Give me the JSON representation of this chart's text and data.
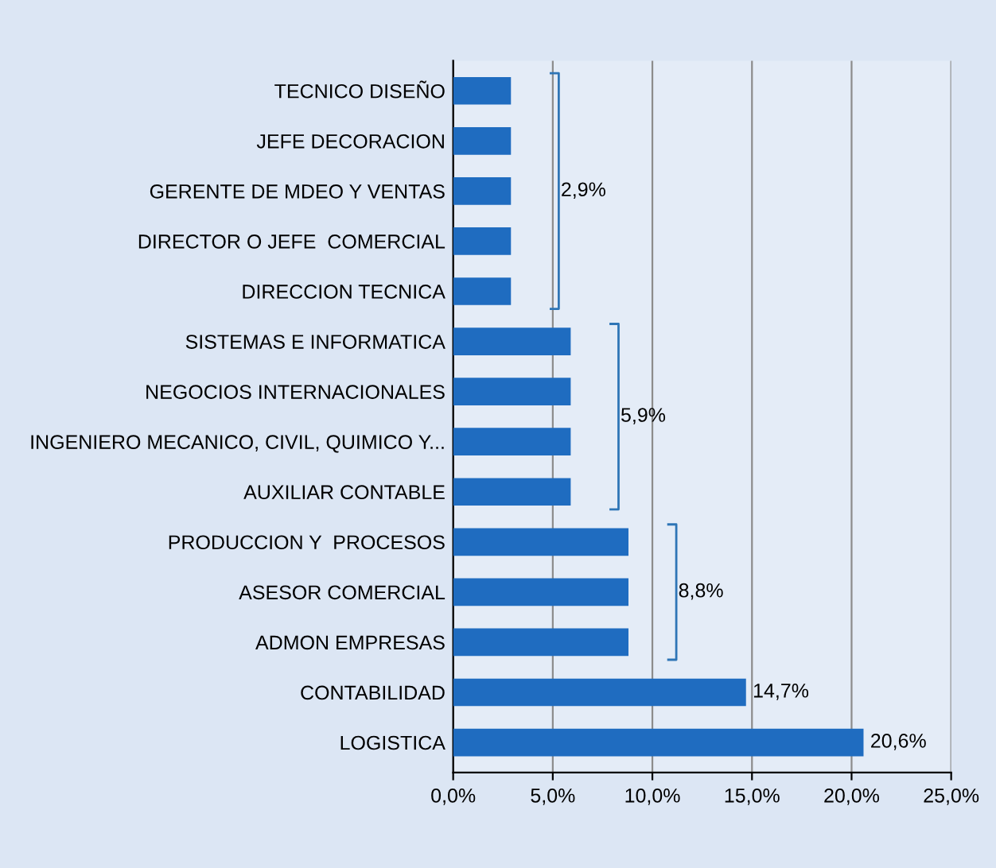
{
  "chart_data": {
    "type": "bar",
    "orientation": "horizontal",
    "categories": [
      "TECNICO DISEÑO",
      "JEFE DECORACION",
      "GERENTE DE MDEO Y VENTAS",
      "DIRECTOR O JEFE  COMERCIAL",
      "DIRECCION TECNICA",
      "SISTEMAS E INFORMATICA",
      "NEGOCIOS INTERNACIONALES",
      "INGENIERO MECANICO, CIVIL, QUIMICO Y...",
      "AUXILIAR CONTABLE",
      "PRODUCCION Y  PROCESOS",
      "ASESOR COMERCIAL",
      "ADMON EMPRESAS",
      "CONTABILIDAD",
      "LOGISTICA"
    ],
    "values": [
      2.9,
      2.9,
      2.9,
      2.9,
      2.9,
      5.9,
      5.9,
      5.9,
      5.9,
      8.8,
      8.8,
      8.8,
      14.7,
      20.6
    ],
    "value_labels": [
      null,
      null,
      null,
      null,
      null,
      null,
      null,
      null,
      null,
      null,
      null,
      null,
      "14,7%",
      "20,6%"
    ],
    "color": "#1f6cc0",
    "annotations": [
      {
        "text": "2,9%",
        "x": 2.9,
        "y": "GERENTE DE MDEO Y VENTAS"
      },
      {
        "text": "5,9%",
        "x": 5.9,
        "y": "INGENIERO MECANICO, CIVIL, QUIMICO Y..."
      },
      {
        "text": "8,8%",
        "x": 8.8,
        "y": "ASESOR COMERCIAL"
      }
    ],
    "xlim": [
      0,
      25
    ],
    "xticks": [
      {
        "value": 0,
        "label": "0,0%"
      },
      {
        "value": 5,
        "label": "5,0%"
      },
      {
        "value": 10,
        "label": "10,0%"
      },
      {
        "value": 15,
        "label": "15,0%"
      },
      {
        "value": 20,
        "label": "20,0%"
      },
      {
        "value": 25,
        "label": "25,0%"
      }
    ],
    "grid": "x"
  }
}
